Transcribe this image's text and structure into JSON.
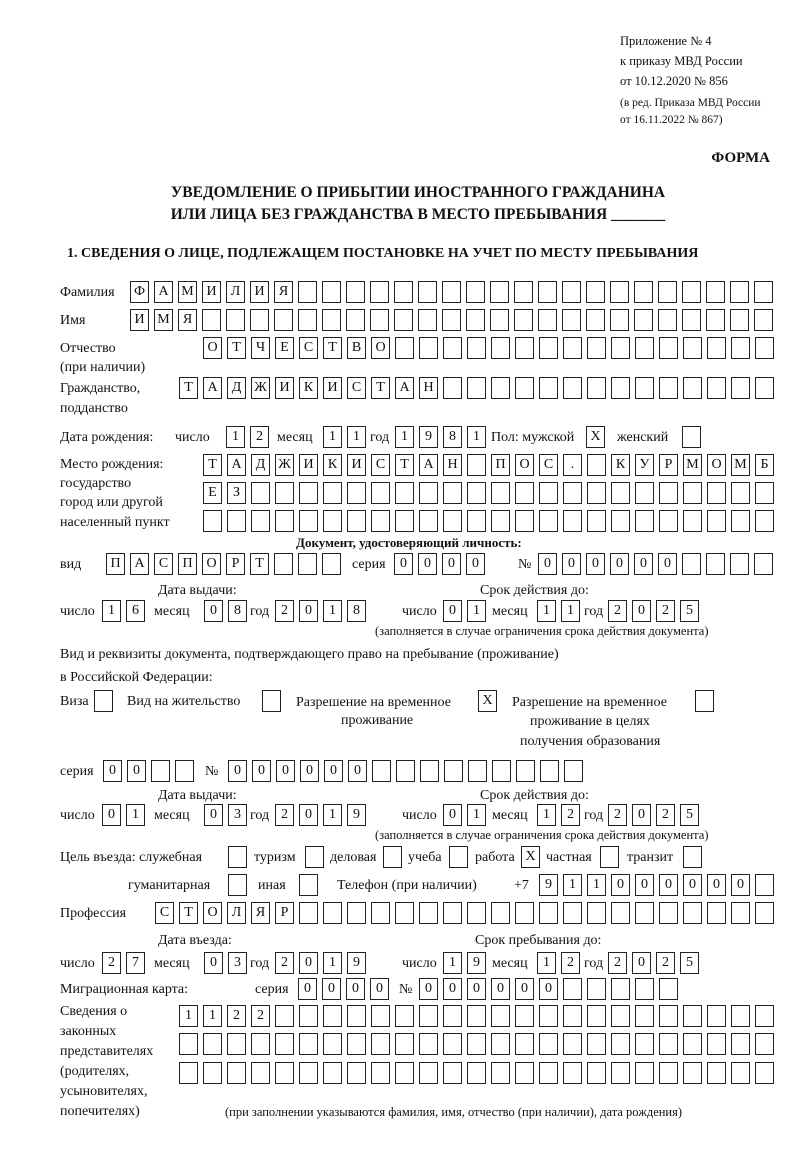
{
  "header": {
    "appendix": "Приложение № 4",
    "order": "к приказу МВД России",
    "order_date": "от 10.12.2020 № 856",
    "edition1": "(в ред. Приказа МВД России",
    "edition2": "от 16.11.2022 № 867)",
    "form_label": "ФОРМА",
    "title1": "УВЕДОМЛЕНИЕ О ПРИБЫТИИ ИНОСТРАННОГО ГРАЖДАНИНА",
    "title2": "ИЛИ ЛИЦА БЕЗ ГРАЖДАНСТВА В МЕСТО ПРЕБЫВАНИЯ _______",
    "section1": "1. СВЕДЕНИЯ О ЛИЦЕ, ПОДЛЕЖАЩЕМ ПОСТАНОВКЕ НА УЧЕТ ПО МЕСТУ ПРЕБЫВАНИЯ"
  },
  "labels": {
    "surname": "Фамилия",
    "name": "Имя",
    "patronymic": "Отчество",
    "patronymic_note": "(при наличии)",
    "citizenship1": "Гражданство,",
    "citizenship2": "подданство",
    "birth_date": "Дата рождения:",
    "day": "число",
    "month": "месяц",
    "year": "год",
    "sex": "Пол: мужской",
    "female": "женский",
    "birth_place1": "Место рождения:",
    "birth_place2": "государство",
    "birth_place3": "город или другой",
    "birth_place4": "населенный пункт",
    "id_doc": "Документ, удостоверяющий личность:",
    "kind": "вид",
    "series": "серия",
    "number": "№",
    "issue_date": "Дата выдачи:",
    "valid_until": "Срок действия до:",
    "validity_note": "(заполняется в случае ограничения срока действия документа)",
    "stay_doc1": "Вид и реквизиты документа, подтверждающего право на пребывание (проживание)",
    "stay_doc2": "в Российской Федерации:",
    "visa": "Виза",
    "residence": "Вид на жительство",
    "temp1": "Разрешение на временное",
    "temp2": "проживание",
    "edu1": "Разрешение на временное",
    "edu2": "проживание в целях",
    "edu3": "получения образования",
    "purpose": "Цель въезда: служебная",
    "tourism": "туризм",
    "business": "деловая",
    "study": "учеба",
    "work": "работа",
    "private": "частная",
    "transit": "транзит",
    "humanitarian": "гуманитарная",
    "other": "иная",
    "phone": "Телефон (при наличии)",
    "phone_prefix": "+7",
    "profession": "Профессия",
    "entry_date": "Дата въезда:",
    "stay_until": "Срок пребывания до:",
    "migration_card": "Миграционная карта:",
    "reps1": "Сведения о",
    "reps2": "законных",
    "reps3": "представителях",
    "reps4": "(родителях,",
    "reps5": "усыновителях,",
    "reps6": "попечителях)",
    "reps_note": "(при заполнении указываются фамилия, имя, отчество (при наличии), дата рождения)"
  },
  "values": {
    "surname": "ФАМИЛИЯ",
    "name": "ИМЯ",
    "patronymic": "ОТЧЕСТВО",
    "citizenship": "ТАДЖИКИСТАН",
    "birth_day": "12",
    "birth_month": "11",
    "birth_year": "1981",
    "sex_male": "X",
    "sex_female": "",
    "birth_place_1": "ТАДЖИКИСТАН ПОС. КУРМОМБ",
    "birth_place_2": "ЕЗ",
    "birth_place_3": "",
    "id_kind": "ПАСПОРТ",
    "id_series": "0000",
    "id_number": "000000",
    "id_issue_day": "16",
    "id_issue_month": "08",
    "id_issue_year": "2018",
    "id_valid_day": "01",
    "id_valid_month": "11",
    "id_valid_year": "2025",
    "visa": "",
    "residence_permit": "",
    "temp_residence": "X",
    "temp_residence_edu": "",
    "stay_series": "00",
    "stay_number": "000000",
    "stay_issue_day": "01",
    "stay_issue_month": "03",
    "stay_issue_year": "2019",
    "stay_valid_day": "01",
    "stay_valid_month": "12",
    "stay_valid_year": "2025",
    "p_official": "",
    "p_tourism": "",
    "p_business": "",
    "p_study": "",
    "p_work": "X",
    "p_private": "",
    "p_transit": "",
    "p_humanitarian": "",
    "p_other": "",
    "phone": "911000000",
    "profession": "СТОЛЯР",
    "entry_day": "27",
    "entry_month": "03",
    "entry_year": "2019",
    "stay_day": "19",
    "stay_month": "12",
    "stay_year": "2025",
    "mc_series": "0000",
    "mc_number": "000000",
    "reps_1": "1122",
    "reps_2": "",
    "reps_3": ""
  }
}
